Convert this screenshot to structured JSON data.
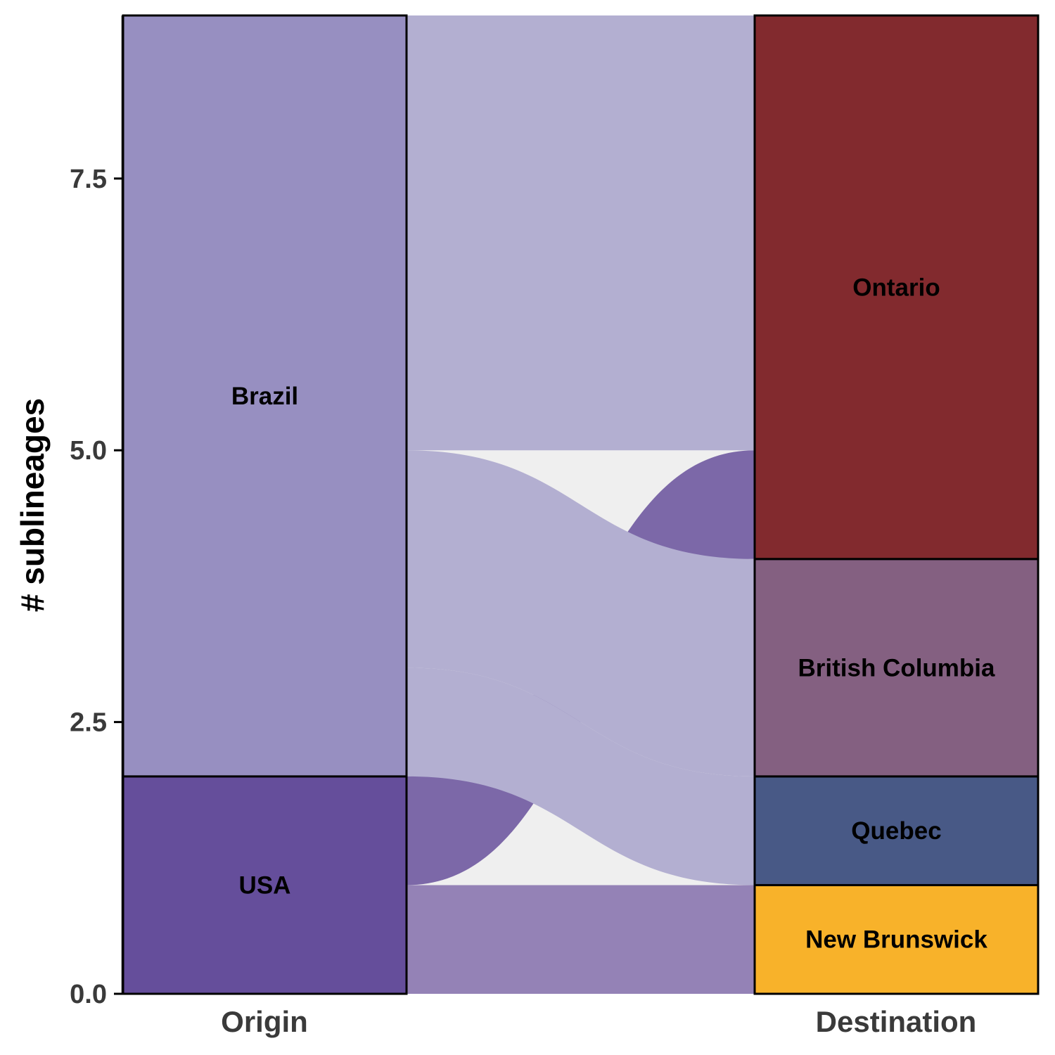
{
  "chart_data": {
    "type": "alluvial",
    "ylabel": "# sublineages",
    "ylim": [
      0,
      9
    ],
    "yticks": [
      0.0,
      2.5,
      5.0,
      7.5
    ],
    "ytick_labels": [
      "0.0",
      "2.5",
      "5.0",
      "7.5"
    ],
    "axes": [
      "Origin",
      "Destination"
    ],
    "strata": {
      "origin": [
        {
          "name": "USA",
          "value": 2,
          "color": "#654e9b"
        },
        {
          "name": "Brazil",
          "value": 7,
          "color": "#978fc1"
        }
      ],
      "destination": [
        {
          "name": "New Brunswick",
          "value": 1,
          "color": "#f8b22a"
        },
        {
          "name": "Quebec",
          "value": 1,
          "color": "#485986"
        },
        {
          "name": "British Columbia",
          "value": 2,
          "color": "#846081"
        },
        {
          "name": "Ontario",
          "value": 5,
          "color": "#822a2e"
        }
      ]
    },
    "flows": [
      {
        "from": "USA",
        "to": "New Brunswick",
        "value": 1,
        "color": "#9482b6"
      },
      {
        "from": "USA",
        "to": "Ontario",
        "value": 1,
        "color": "#7c68a8"
      },
      {
        "from": "Brazil",
        "to": "Quebec",
        "value": 1,
        "color": "#b3afd1"
      },
      {
        "from": "Brazil",
        "to": "British Columbia",
        "value": 2,
        "color": "#b3afd1"
      },
      {
        "from": "Brazil",
        "to": "Ontario",
        "value": 4,
        "color": "#b3afd1"
      }
    ],
    "background_color": "#efefef"
  }
}
